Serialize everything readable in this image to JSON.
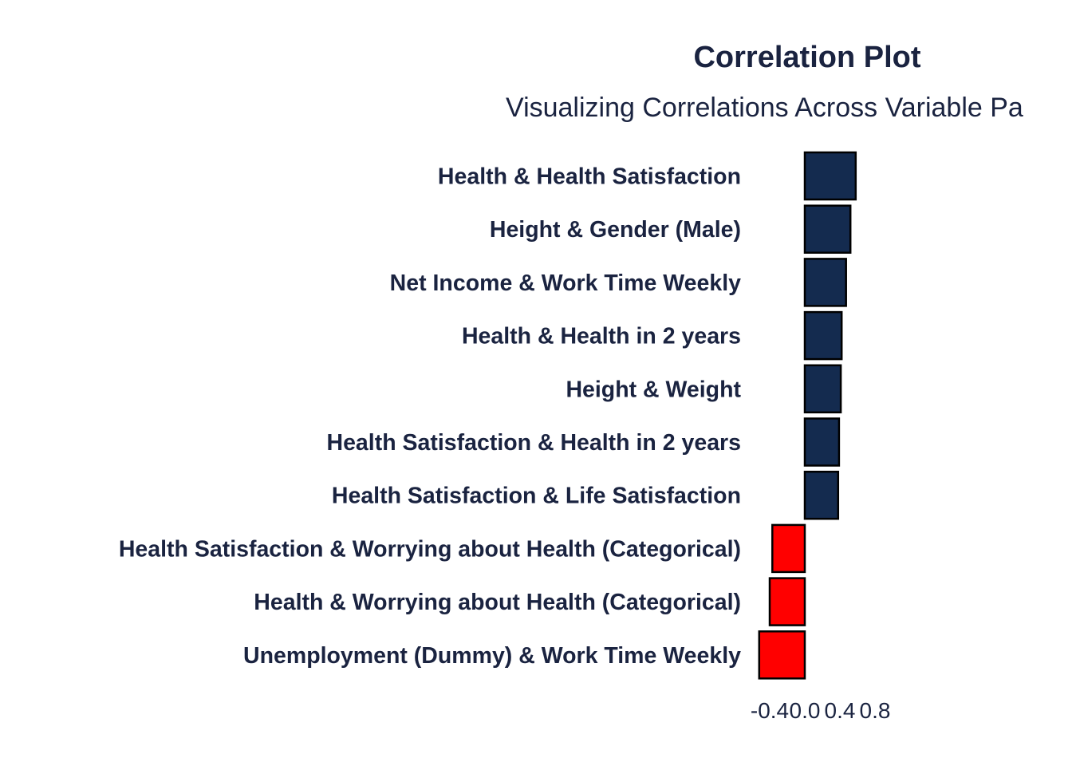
{
  "chart_data": {
    "type": "bar",
    "orientation": "horizontal",
    "title": "Correlation Plot",
    "subtitle": "Visualizing Correlations Across Variable Pa",
    "xlabel": "",
    "ylabel": "",
    "categories": [
      "Health & Health Satisfaction",
      "Height & Gender (Male)",
      "Net Income & Work Time Weekly",
      "Health & Health in 2 years",
      "Height & Weight",
      "Health Satisfaction & Health in 2 years",
      "Health Satisfaction & Life Satisfaction",
      "Health Satisfaction & Worrying about Health (Categorical)",
      "Health & Worrying about Health (Categorical)",
      "Unemployment (Dummy) & Work Time Weekly"
    ],
    "values": [
      0.58,
      0.52,
      0.47,
      0.42,
      0.41,
      0.39,
      0.38,
      -0.37,
      -0.4,
      -0.52
    ],
    "xlim": [
      -0.52,
      0.58
    ],
    "xticks": [
      -0.4,
      0.0,
      0.4,
      0.8
    ],
    "xtick_labels": [
      "-0.4",
      "0.0",
      "0.4",
      "0.8"
    ],
    "grid": false,
    "legend": "none",
    "colors": {
      "positive": "#142b4f",
      "negative": "#ff0000",
      "bar_outline": "#000000",
      "text": "#1a2340"
    }
  }
}
